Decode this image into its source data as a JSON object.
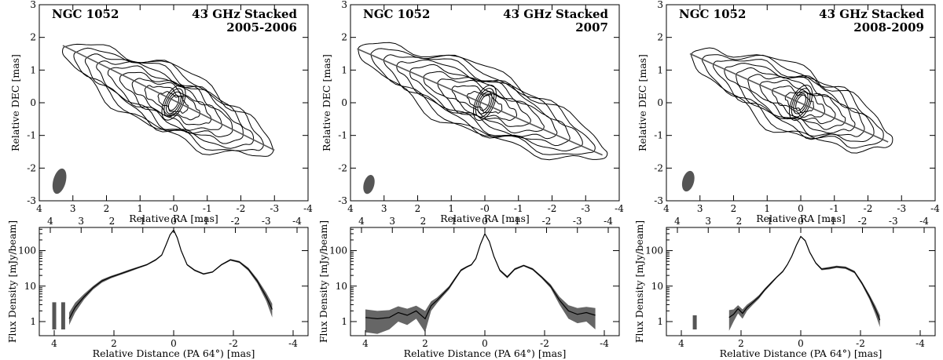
{
  "chart_data": [
    {
      "type": "contour",
      "panel": "upper-left",
      "source_label": "NGC 1052",
      "title": "43 GHz Stacked",
      "epoch": "2005-2006",
      "xlabel": "Relative RA [mas]",
      "ylabel": "Relative DEC [mas]",
      "xlim": [
        4,
        -4
      ],
      "ylim": [
        -3,
        3
      ],
      "xticks": [
        4,
        3,
        2,
        1,
        0,
        -1,
        -2,
        -3,
        -4
      ],
      "xtick_labels": [
        "4",
        "3",
        "2",
        "1",
        "-0",
        "-1",
        "-2",
        "-3",
        "-4"
      ],
      "yticks": [
        3,
        2,
        1,
        0,
        -1,
        -2,
        -3
      ],
      "ytick_labels": [
        "3",
        "2",
        "1",
        "0",
        "-1",
        "-2",
        "-3"
      ],
      "ridge_line": {
        "x": [
          3.3,
          -3.0
        ],
        "y": [
          1.75,
          -1.45
        ]
      },
      "jet_extent_mas": {
        "east": 3.4,
        "west": -3.0
      },
      "core_position": [
        0.0,
        0.0
      ],
      "beam": {
        "x": 3.4,
        "y": -2.4,
        "major_mas": 0.7,
        "minor_mas": 0.28
      }
    },
    {
      "type": "contour",
      "panel": "upper-middle",
      "source_label": "NGC 1052",
      "title": "43 GHz Stacked",
      "epoch": "2007",
      "xlabel": "Relative RA [mas]",
      "ylabel": "Relative DEC [mas]",
      "xlim": [
        4,
        -4
      ],
      "ylim": [
        -3,
        3
      ],
      "xticks": [
        4,
        3,
        2,
        1,
        0,
        -1,
        -2,
        -3,
        -4
      ],
      "xtick_labels": [
        "4",
        "3",
        "2",
        "1",
        "-0",
        "-1",
        "-2",
        "-3",
        "-4"
      ],
      "yticks": [
        3,
        2,
        1,
        0,
        -1,
        -2,
        -3
      ],
      "ytick_labels": [
        "3",
        "2",
        "1",
        "0",
        "-1",
        "-2",
        "-3"
      ],
      "ridge_line": {
        "x": [
          3.8,
          -3.5
        ],
        "y": [
          1.65,
          -1.6
        ]
      },
      "jet_extent_mas": {
        "east": 3.8,
        "west": -3.6
      },
      "core_position": [
        0.0,
        0.0
      ],
      "beam": {
        "x": 3.45,
        "y": -2.5,
        "major_mas": 0.5,
        "minor_mas": 0.22
      }
    },
    {
      "type": "contour",
      "panel": "upper-right",
      "source_label": "NGC 1052",
      "title": "43 GHz Stacked",
      "epoch": "2008-2009",
      "xlabel": "Relative RA [mas]",
      "ylabel": "Relative DEC [mas]",
      "xlim": [
        4,
        -4
      ],
      "ylim": [
        -3,
        3
      ],
      "xticks": [
        4,
        3,
        2,
        1,
        0,
        -1,
        -2,
        -3,
        -4
      ],
      "xtick_labels": [
        "4",
        "3",
        "2",
        "1",
        "0",
        "-1",
        "-2",
        "-3",
        "-4"
      ],
      "yticks": [
        3,
        2,
        1,
        0,
        -1,
        -2,
        -3
      ],
      "ytick_labels": [
        "3",
        "2",
        "1",
        "0",
        "-1",
        "-2",
        "-3"
      ],
      "ridge_line": {
        "x": [
          3.3,
          -2.6
        ],
        "y": [
          1.5,
          -1.2
        ]
      },
      "jet_extent_mas": {
        "east": 3.3,
        "west": -2.7
      },
      "core_position": [
        0.0,
        0.0
      ],
      "beam": {
        "x": 3.35,
        "y": -2.4,
        "major_mas": 0.55,
        "minor_mas": 0.25
      }
    },
    {
      "type": "area",
      "panel": "lower-left",
      "xlabel": "Relative Distance (PA 64°) [mas]",
      "ylabel": "Flux Density [mJy/beam]",
      "yscale": "log",
      "xlim": [
        4.5,
        -4.5
      ],
      "ylim": [
        0.4,
        450
      ],
      "xticks_bottom": [
        4,
        2,
        0,
        -2,
        -4
      ],
      "xtick_labels_bottom": [
        "4",
        "2",
        "0",
        "-2",
        "-4"
      ],
      "xticks_top": [
        4,
        3,
        2,
        1,
        0,
        -1,
        -2,
        -3,
        -4
      ],
      "xtick_labels_top": [
        "4",
        "3",
        "2",
        "1",
        "0",
        "-1",
        "-2",
        "-3",
        "-4"
      ],
      "yticks": [
        1,
        10,
        100
      ],
      "ytick_labels": [
        "1",
        "10",
        "100"
      ],
      "x": [
        3.5,
        3.3,
        3.0,
        2.7,
        2.4,
        2.1,
        1.8,
        1.5,
        1.2,
        0.9,
        0.6,
        0.4,
        0.25,
        0.12,
        0.0,
        -0.12,
        -0.25,
        -0.45,
        -0.7,
        -1.0,
        -1.3,
        -1.6,
        -1.9,
        -2.2,
        -2.5,
        -2.8,
        -3.1,
        -3.3
      ],
      "y": [
        1.2,
        2.5,
        5,
        9,
        14,
        18,
        22,
        27,
        33,
        40,
        55,
        75,
        150,
        280,
        380,
        230,
        100,
        40,
        28,
        22,
        25,
        40,
        55,
        48,
        30,
        14,
        5,
        2.2
      ],
      "y_lower": [
        0.8,
        1.8,
        4.2,
        8,
        12.5,
        16.5,
        20.5,
        25,
        31,
        38,
        52,
        72,
        144,
        270,
        365,
        220,
        96,
        38,
        26.5,
        21,
        24,
        38,
        52,
        45,
        27,
        12,
        3.8,
        1.3
      ],
      "y_upper": [
        1.8,
        3.4,
        6,
        10,
        15.5,
        19.5,
        23.5,
        29,
        35,
        42,
        58,
        78,
        156,
        290,
        395,
        240,
        104,
        42,
        29.5,
        23,
        26,
        42,
        58,
        51,
        33,
        16,
        6.5,
        3.2
      ],
      "noise_bars_x": [
        4.0,
        3.7
      ],
      "noise_bars_range": [
        0.6,
        3.5
      ]
    },
    {
      "type": "area",
      "panel": "lower-middle",
      "xlabel": "Relative Distance (PA 64°) [mas]",
      "ylabel": "Flux Density [mJy/beam]",
      "yscale": "log",
      "xlim": [
        4.5,
        -4.5
      ],
      "ylim": [
        0.4,
        450
      ],
      "xticks_bottom": [
        4,
        2,
        0,
        -2,
        -4
      ],
      "xtick_labels_bottom": [
        "4",
        "2",
        "0",
        "-2",
        "-4"
      ],
      "xticks_top": [
        4,
        3,
        2,
        1,
        0,
        -1,
        -2,
        -3,
        -4
      ],
      "xtick_labels_top": [
        "4",
        "3",
        "2",
        "1",
        "0",
        "-1",
        "-2",
        "-3",
        "-4"
      ],
      "yticks": [
        1,
        10,
        100
      ],
      "ytick_labels": [
        "1",
        "10",
        "100"
      ],
      "x": [
        4.0,
        3.6,
        3.2,
        2.9,
        2.6,
        2.3,
        2.0,
        1.8,
        1.6,
        1.4,
        1.2,
        1.0,
        0.8,
        0.6,
        0.45,
        0.3,
        0.15,
        0.0,
        -0.15,
        -0.3,
        -0.5,
        -0.75,
        -1.0,
        -1.3,
        -1.6,
        -1.9,
        -2.2,
        -2.5,
        -2.8,
        -3.1,
        -3.4,
        -3.7
      ],
      "y": [
        1.3,
        1.2,
        1.3,
        1.8,
        1.5,
        2.0,
        1.2,
        2.8,
        4,
        6,
        9,
        16,
        28,
        35,
        40,
        60,
        150,
        300,
        180,
        70,
        28,
        18,
        30,
        38,
        30,
        18,
        10,
        4,
        2.0,
        1.6,
        1.8,
        1.5
      ],
      "y_lower": [
        0.5,
        0.45,
        0.6,
        1.0,
        0.8,
        1.2,
        0.5,
        2.0,
        3.3,
        5.2,
        8,
        14.5,
        26,
        33,
        38,
        57,
        145,
        290,
        172,
        66,
        26,
        16.5,
        28,
        36,
        28,
        16.5,
        8.8,
        3,
        1.2,
        0.9,
        1.0,
        0.6
      ],
      "y_upper": [
        2.2,
        2.0,
        2.1,
        2.7,
        2.3,
        2.8,
        2.0,
        3.7,
        4.8,
        6.9,
        10,
        17.5,
        30,
        37,
        42,
        63,
        155,
        310,
        188,
        74,
        30,
        19.5,
        32,
        40,
        32,
        19.5,
        11.3,
        5,
        2.9,
        2.4,
        2.6,
        2.4
      ]
    },
    {
      "type": "area",
      "panel": "lower-right",
      "xlabel": "Relative Distance (PA 64°) [mas]",
      "ylabel": "Flux Density [mJy/beam]",
      "yscale": "log",
      "xlim": [
        4.5,
        -4.5
      ],
      "ylim": [
        0.4,
        450
      ],
      "xticks_bottom": [
        4,
        2,
        0,
        -2,
        -4
      ],
      "xtick_labels_bottom": [
        "4",
        "2",
        "0",
        "-2",
        "-4"
      ],
      "xticks_top": [
        4,
        3,
        2,
        1,
        0,
        -1,
        -2,
        -3,
        -4
      ],
      "xtick_labels_top": [
        "4",
        "3",
        "2",
        "1",
        "0",
        "-1",
        "-2",
        "-3",
        "-4"
      ],
      "yticks": [
        1,
        10,
        100
      ],
      "ytick_labels": [
        "1",
        "10",
        "100"
      ],
      "x": [
        2.4,
        2.25,
        2.1,
        1.95,
        1.8,
        1.6,
        1.4,
        1.2,
        1.0,
        0.8,
        0.6,
        0.45,
        0.3,
        0.15,
        0.0,
        -0.15,
        -0.3,
        -0.5,
        -0.7,
        -0.95,
        -1.2,
        -1.5,
        -1.8,
        -2.05,
        -2.3,
        -2.5,
        -2.65
      ],
      "y": [
        1.3,
        1.6,
        2.3,
        1.7,
        2.5,
        3.5,
        5,
        8,
        12,
        18,
        26,
        40,
        70,
        140,
        250,
        190,
        90,
        45,
        30,
        32,
        35,
        33,
        25,
        12,
        5,
        2.2,
        1.1
      ],
      "y_lower": [
        0.55,
        1.0,
        1.7,
        1.2,
        2.0,
        3.0,
        4.4,
        7.3,
        11,
        17,
        24.5,
        38,
        67,
        135,
        240,
        182,
        86,
        42.5,
        28,
        29.5,
        32.5,
        30.5,
        23,
        10.8,
        4.2,
        1.6,
        0.7
      ],
      "y_upper": [
        2.1,
        2.2,
        2.9,
        2.2,
        3.0,
        4.0,
        5.6,
        8.7,
        13,
        19,
        27.5,
        42,
        73,
        145,
        260,
        198,
        94,
        47.5,
        32,
        34.5,
        37.5,
        35.5,
        27,
        13.2,
        5.8,
        2.8,
        1.5
      ],
      "noise_bars_x": [
        3.55
      ],
      "noise_bars_range": [
        0.6,
        1.5
      ]
    }
  ]
}
